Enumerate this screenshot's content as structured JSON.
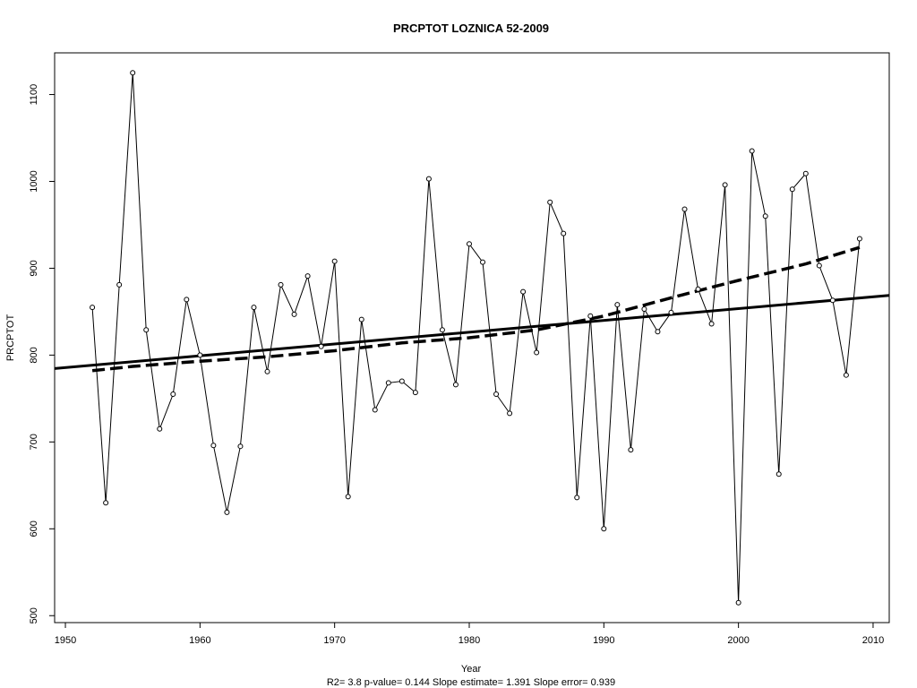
{
  "chart_data": {
    "type": "line",
    "title": "PRCPTOT   LOZNICA 52-2009",
    "xlabel": "Year",
    "ylabel": "PRCPTOT",
    "subtitle": "R2= 3.8  p-value= 0.144  Slope estimate= 1.391  Slope error= 0.939",
    "xlim": [
      1949.2,
      2011.2
    ],
    "ylim": [
      492,
      1148
    ],
    "x_ticks": [
      1950,
      1960,
      1970,
      1980,
      1990,
      2000,
      2010
    ],
    "y_ticks": [
      500,
      600,
      700,
      800,
      900,
      1000,
      1100
    ],
    "grid": false,
    "series": [
      {
        "x": [
          1952,
          1953,
          1954,
          1955,
          1956,
          1957,
          1958,
          1959,
          1960,
          1961,
          1962,
          1963,
          1964,
          1965,
          1966,
          1967,
          1968,
          1969,
          1970,
          1971,
          1972,
          1973,
          1974,
          1975,
          1976,
          1977,
          1978,
          1979,
          1980,
          1981,
          1982,
          1983,
          1984,
          1985,
          1986,
          1987,
          1988,
          1989,
          1990,
          1991,
          1992,
          1993,
          1994,
          1995,
          1996,
          1997,
          1998,
          1999,
          2000,
          2001,
          2002,
          2003,
          2004,
          2005,
          2006,
          2007,
          2008,
          2009
        ],
        "values": [
          855,
          630,
          881,
          1125,
          829,
          715,
          755,
          864,
          800,
          696,
          619,
          695,
          855,
          781,
          881,
          847,
          891,
          810,
          908,
          637,
          841,
          737,
          768,
          770,
          757,
          1003,
          829,
          766,
          928,
          907,
          755,
          733,
          873,
          803,
          976,
          940,
          636,
          845,
          600,
          858,
          691,
          853,
          827,
          849,
          968,
          876,
          836,
          996,
          515,
          1035,
          960,
          663,
          991,
          1009,
          903,
          863,
          777,
          934
        ]
      },
      {
        "name": "linear trend",
        "x": [
          1949.2,
          2011.2
        ],
        "values": [
          784.5,
          868.8
        ]
      },
      {
        "name": "smoothed trend",
        "x": [
          1952,
          1955,
          1960,
          1965,
          1970,
          1975,
          1980,
          1985,
          1990,
          1995,
          2000,
          2005,
          2009
        ],
        "values": [
          782,
          787,
          793,
          798,
          805,
          814,
          820,
          829,
          845,
          866,
          886,
          905,
          924
        ]
      }
    ]
  }
}
